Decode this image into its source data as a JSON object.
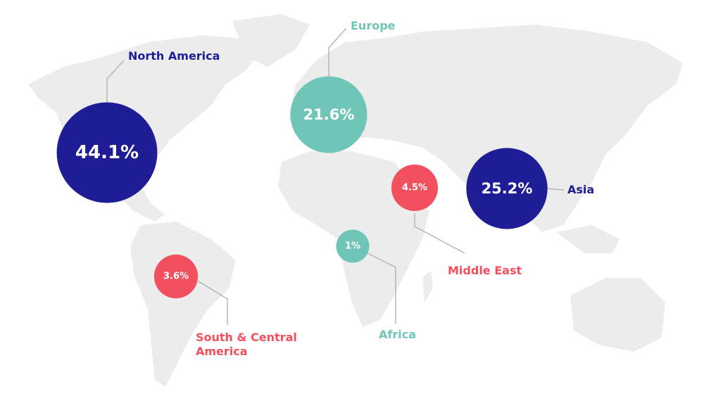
{
  "regions": [
    {
      "name": "North America",
      "value": 44.1,
      "value_label": "44.1%",
      "color": "#1f1d96"
    },
    {
      "name": "Europe",
      "value": 21.6,
      "value_label": "21.6%",
      "color": "#6fc6b8"
    },
    {
      "name": "Asia",
      "value": 25.2,
      "value_label": "25.2%",
      "color": "#1f1d96"
    },
    {
      "name": "Middle East",
      "value": 4.5,
      "value_label": "4.5%",
      "color": "#f24f5f"
    },
    {
      "name": "Africa",
      "value": 1,
      "value_label": "1%",
      "color": "#6fc6b8"
    },
    {
      "name": "South & Central America",
      "value": 3.6,
      "value_label": "3.6%",
      "color": "#f24f5f"
    }
  ]
}
